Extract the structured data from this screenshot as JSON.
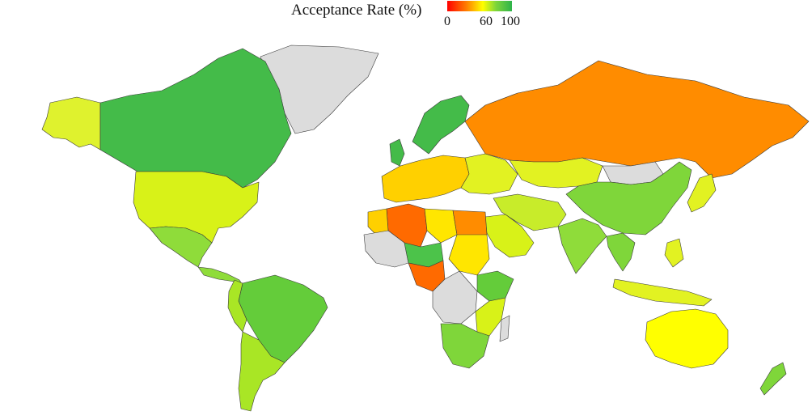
{
  "legend": {
    "title": "Acceptance Rate (%)",
    "ticks": [
      "0",
      "60",
      "100"
    ],
    "gradient": [
      "#ff0000",
      "#ff7f00",
      "#ffff00",
      "#7fd63a",
      "#2eb34a"
    ]
  },
  "colors": {
    "no_data": "#dcdcdc",
    "ocean": "#ffffff",
    "border": "#3a3a3a"
  },
  "regions": [
    {
      "name": "Canada",
      "color": "#44bb49"
    },
    {
      "name": "Greenland",
      "color": "#dcdcdc"
    },
    {
      "name": "Alaska",
      "color": "#dff22e"
    },
    {
      "name": "United States",
      "color": "#d8f218"
    },
    {
      "name": "Mexico",
      "color": "#8fdc3a"
    },
    {
      "name": "Brazil",
      "color": "#64cc3a"
    },
    {
      "name": "Argentina",
      "color": "#a9e625"
    },
    {
      "name": "Russia",
      "color": "#ff8c00"
    },
    {
      "name": "China",
      "color": "#7fd63a"
    },
    {
      "name": "Mongolia",
      "color": "#dcdcdc"
    },
    {
      "name": "Kazakhstan",
      "color": "#e2f222"
    },
    {
      "name": "India",
      "color": "#8fdc3a"
    },
    {
      "name": "Australia",
      "color": "#ffff00"
    },
    {
      "name": "Algeria",
      "color": "#ff6a00"
    },
    {
      "name": "Libya",
      "color": "#ffe600"
    },
    {
      "name": "Egypt",
      "color": "#ff8c00"
    },
    {
      "name": "Niger",
      "color": "#4cc34a"
    },
    {
      "name": "Sudan",
      "color": "#ffe600"
    },
    {
      "name": "Ethiopia",
      "color": "#64cc3a"
    },
    {
      "name": "DR Congo",
      "color": "#dcdcdc"
    },
    {
      "name": "South Africa",
      "color": "#7fd63a"
    },
    {
      "name": "Scandinavia",
      "color": "#44bb49"
    },
    {
      "name": "Western Europe",
      "color": "#ffd000"
    },
    {
      "name": "Iran",
      "color": "#c8ec2a"
    },
    {
      "name": "Saudi Arabia",
      "color": "#d8f218"
    },
    {
      "name": "Indonesia",
      "color": "#e2f222"
    },
    {
      "name": "New Zealand",
      "color": "#7fd63a"
    }
  ]
}
